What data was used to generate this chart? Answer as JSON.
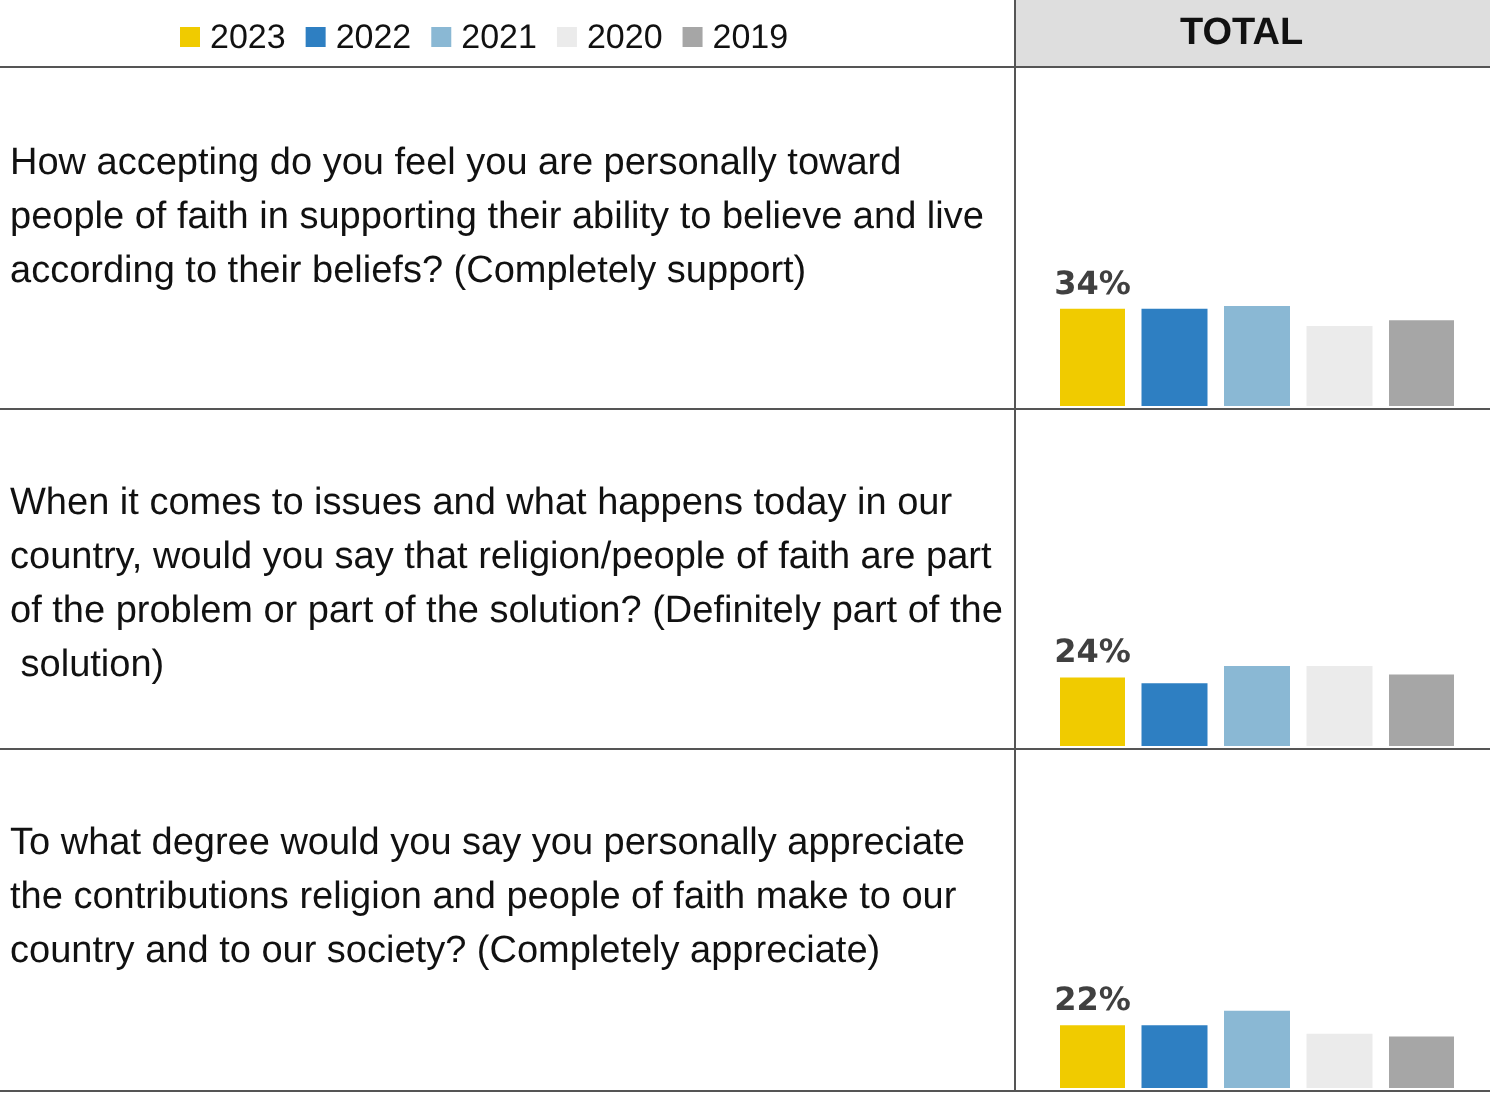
{
  "chart_data": [
    {
      "type": "bar",
      "title": "How accepting do you feel you are personally toward people of faith in supporting their ability to believe and live according to their beliefs? (Completely support)",
      "categories": [
        null
      ],
      "legend": "top",
      "tick_labels": false,
      "annotations": [
        "TOTAL"
      ],
      "series": [
        {
          "name": "2023",
          "color": "#f0cb00",
          "values": [
            34
          ],
          "value_labels": [
            "34%"
          ]
        },
        {
          "name": "2022",
          "color": "#2e7fc2",
          "values": [
            34
          ]
        },
        {
          "name": "2021",
          "color": "#8ab8d4",
          "values": [
            35
          ]
        },
        {
          "name": "2020",
          "color": "#ebebeb",
          "values": [
            28
          ]
        },
        {
          "name": "2019",
          "color": "#a6a6a6",
          "values": [
            30
          ]
        }
      ]
    },
    {
      "type": "bar",
      "title": "When it comes to issues and what happens today in our country, would you say that religion/people of faith are part of the problem or part of the solution? (Definitely part of the solution)",
      "categories": [
        null
      ],
      "tick_labels": false,
      "series": [
        {
          "name": "2023",
          "color": "#f0cb00",
          "values": [
            24
          ],
          "value_labels": [
            "24%"
          ]
        },
        {
          "name": "2022",
          "color": "#2e7fc2",
          "values": [
            22
          ]
        },
        {
          "name": "2021",
          "color": "#8ab8d4",
          "values": [
            28
          ]
        },
        {
          "name": "2020",
          "color": "#ebebeb",
          "values": [
            28
          ]
        },
        {
          "name": "2019",
          "color": "#a6a6a6",
          "values": [
            25
          ]
        }
      ]
    },
    {
      "type": "bar",
      "title": "To what degree would you say you personally appreciate the contributions religion and people of faith make to our country and to our society? (Completely appreciate)",
      "categories": [
        null
      ],
      "tick_labels": false,
      "series": [
        {
          "name": "2023",
          "color": "#f0cb00",
          "values": [
            22
          ],
          "value_labels": [
            "22%"
          ]
        },
        {
          "name": "2022",
          "color": "#2e7fc2",
          "values": [
            22
          ]
        },
        {
          "name": "2021",
          "color": "#8ab8d4",
          "values": [
            27
          ]
        },
        {
          "name": "2020",
          "color": "#ebebeb",
          "values": [
            19
          ]
        },
        {
          "name": "2019",
          "color": "#a6a6a6",
          "values": [
            18
          ]
        }
      ]
    }
  ]
}
